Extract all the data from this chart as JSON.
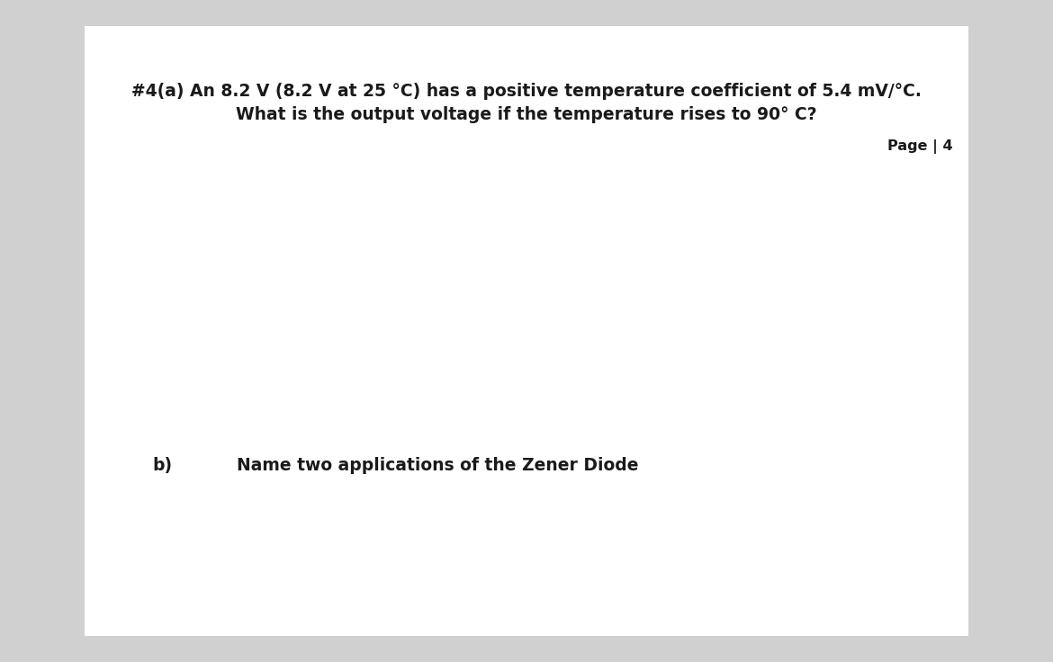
{
  "background_color": "#ffffff",
  "page_bg": "#d0d0d0",
  "line1": "#4(a) An 8.2 V (8.2 V at 25 °C) has a positive temperature coefficient of 5.4 mV/°C.",
  "line2": "What is the output voltage if the temperature rises to 90° C?",
  "page_label": "Page | 4",
  "section_b_label": "b)",
  "section_b_text": "Name two applications of the Zener Diode",
  "text_color": "#1a1a1a",
  "title_fontsize": 13.5,
  "body_fontsize": 13.5,
  "page_label_fontsize": 11.5,
  "font_weight": "bold"
}
